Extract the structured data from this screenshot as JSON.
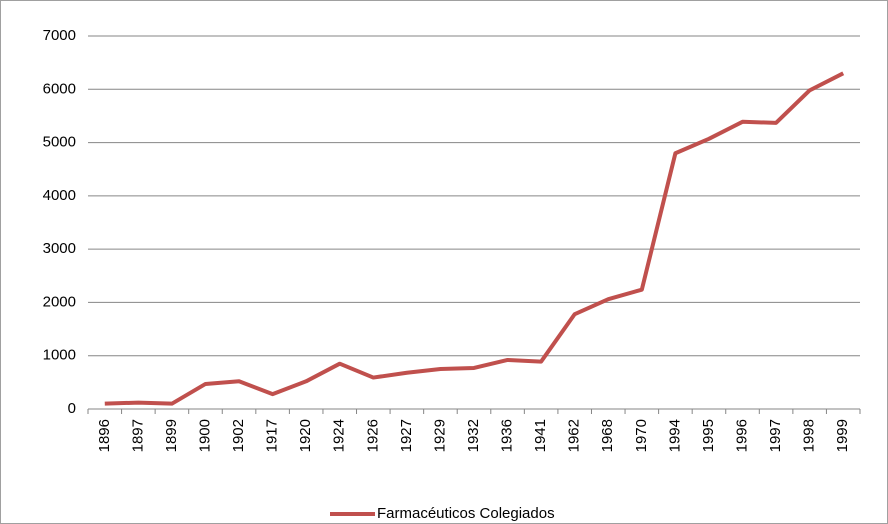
{
  "chart_data": {
    "type": "line",
    "categories": [
      "1896",
      "1897",
      "1899",
      "1900",
      "1902",
      "1917",
      "1920",
      "1924",
      "1926",
      "1927",
      "1929",
      "1932",
      "1936",
      "1941",
      "1962",
      "1968",
      "1970",
      "1994",
      "1995",
      "1996",
      "1997",
      "1998",
      "1999"
    ],
    "series": [
      {
        "name": "Farmacéuticos Colegiados",
        "color": "#c0504d",
        "values": [
          100,
          120,
          100,
          470,
          520,
          280,
          520,
          850,
          590,
          680,
          750,
          770,
          920,
          890,
          1780,
          2060,
          2240,
          4800,
          5070,
          5390,
          5370,
          5980,
          6300
        ]
      }
    ],
    "ylim": [
      0,
      7000
    ],
    "yticks": [
      0,
      1000,
      2000,
      3000,
      4000,
      5000,
      6000,
      7000
    ],
    "grid": true,
    "legend": "bottom"
  }
}
